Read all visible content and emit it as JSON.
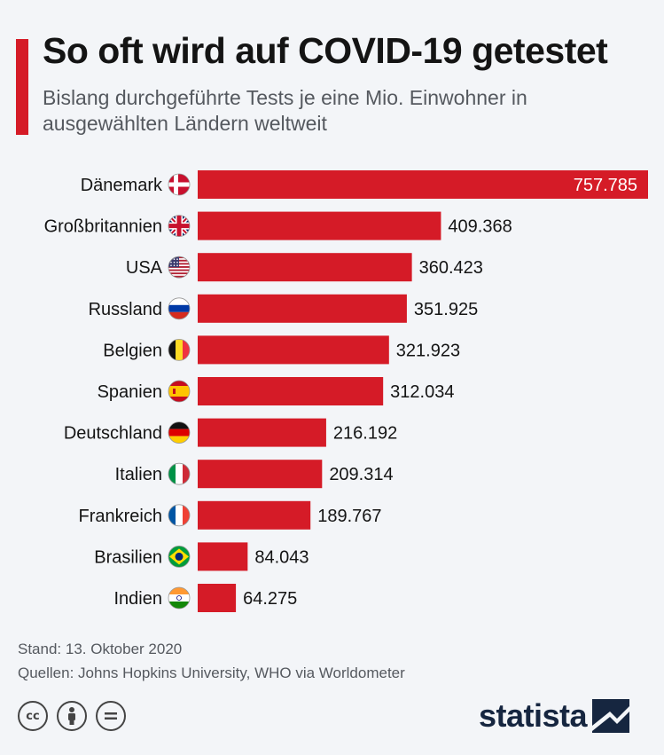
{
  "header": {
    "title": "So oft wird auf COVID-19 getestet",
    "subtitle": "Bislang durchgeführte Tests je eine Mio. Einwohner in ausgewählten Ländern weltweit"
  },
  "colors": {
    "accent": "#d51b27",
    "text": "#141414",
    "muted": "#55595f",
    "background": "#f3f5f8",
    "brand": "#162640"
  },
  "chart_data": {
    "type": "bar",
    "orientation": "horizontal",
    "categories": [
      "Dänemark",
      "Großbritannien",
      "USA",
      "Russland",
      "Belgien",
      "Spanien",
      "Deutschland",
      "Italien",
      "Frankreich",
      "Brasilien",
      "Indien"
    ],
    "values": [
      757785,
      409368,
      360423,
      351925,
      321923,
      312034,
      216192,
      209314,
      189767,
      84043,
      64275
    ],
    "value_labels": [
      "757.785",
      "409.368",
      "360.423",
      "351.925",
      "321.923",
      "312.034",
      "216.192",
      "209.314",
      "189.767",
      "84.043",
      "64.275"
    ],
    "flags": [
      "flag-denmark-icon",
      "flag-uk-icon",
      "flag-usa-icon",
      "flag-russia-icon",
      "flag-belgium-icon",
      "flag-spain-icon",
      "flag-germany-icon",
      "flag-italy-icon",
      "flag-france-icon",
      "flag-brazil-icon",
      "flag-india-icon"
    ],
    "xlim": [
      0,
      757785
    ],
    "grid": false,
    "bar_color": "#d51b27"
  },
  "footer": {
    "date": "Stand: 13. Oktober 2020",
    "sources": "Quellen: Johns Hopkins University, WHO via Worldometer",
    "brand": "statista",
    "license_icons": [
      "cc-icon",
      "attribution-icon",
      "no-derivatives-icon"
    ]
  }
}
